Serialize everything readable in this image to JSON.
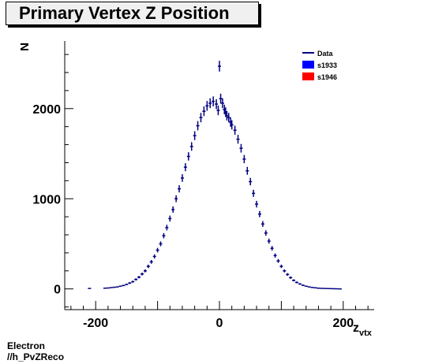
{
  "chart_data": {
    "type": "scatter",
    "title": "Primary Vertex Z Position",
    "xlabel": "z",
    "xlabel_sub": "vtx",
    "ylabel": "N",
    "xlim": [
      -250,
      250
    ],
    "ylim": [
      -230,
      2750
    ],
    "x_ticks": [
      -200,
      0,
      200
    ],
    "y_ticks": [
      0,
      1000,
      2000
    ],
    "grid": false,
    "legend_position": "top-right",
    "legend": [
      {
        "label": "Data",
        "style": "line",
        "color": "#000080"
      },
      {
        "label": "s1933",
        "style": "fill",
        "color": "#0000ff"
      },
      {
        "label": "s1946",
        "style": "fill",
        "color": "#ff0000"
      }
    ],
    "marker_color": "#000080",
    "series": [
      {
        "x": [
          -210,
          -185,
          -180,
          -175,
          -170,
          -165,
          -160,
          -155,
          -150,
          -145,
          -140,
          -135,
          -130,
          -125,
          -120,
          -115,
          -110,
          -105,
          -100,
          -95,
          -90,
          -85,
          -80,
          -75,
          -70,
          -65,
          -60,
          -55,
          -50,
          -45,
          -40,
          -35,
          -30,
          -25,
          -20,
          -15,
          -10,
          -5,
          -2,
          0,
          2,
          5,
          8,
          10,
          12,
          15,
          18,
          20,
          25,
          30,
          35,
          40,
          45,
          50,
          55,
          60,
          65,
          70,
          75,
          80,
          85,
          90,
          95,
          100,
          105,
          110,
          115,
          120,
          125,
          130,
          135,
          140,
          145,
          150,
          155,
          160,
          165,
          170,
          175,
          180,
          185,
          190,
          195
        ],
        "y": [
          5,
          8,
          10,
          14,
          18,
          22,
          30,
          38,
          50,
          65,
          80,
          105,
          130,
          165,
          200,
          250,
          300,
          360,
          430,
          500,
          590,
          680,
          780,
          880,
          1000,
          1110,
          1230,
          1350,
          1470,
          1580,
          1700,
          1810,
          1900,
          1970,
          2030,
          2060,
          2080,
          2050,
          1980,
          2470,
          2110,
          2060,
          1990,
          1960,
          1920,
          1900,
          1850,
          1820,
          1760,
          1660,
          1560,
          1440,
          1310,
          1190,
          1060,
          940,
          830,
          720,
          620,
          530,
          450,
          370,
          310,
          250,
          200,
          160,
          125,
          95,
          72,
          55,
          40,
          30,
          22,
          16,
          12,
          8,
          6,
          5,
          4,
          3,
          2,
          1,
          0
        ]
      }
    ]
  },
  "footer": {
    "line1": "Electron",
    "line2": "//h_PvZReco"
  }
}
